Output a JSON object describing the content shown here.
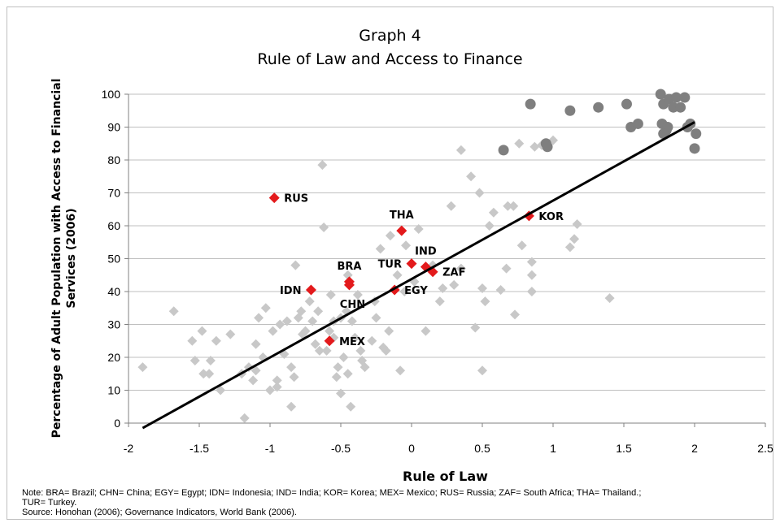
{
  "chart_data": {
    "type": "scatter",
    "title": "Graph 4",
    "subtitle": "Rule of Law and Access to Finance",
    "xlabel": "Rule of Law",
    "ylabel_lines": [
      "Percentage of Adult Population with Access to Financial",
      "Services (2006)"
    ],
    "xlim": [
      -2,
      2.5
    ],
    "ylim": [
      0,
      100
    ],
    "xticks": [
      -2,
      -1.5,
      -1,
      -0.5,
      0,
      0.5,
      1,
      1.5,
      2,
      2.5
    ],
    "xtick_labels": [
      "-2",
      "-1.5",
      "-1",
      "-0.5",
      "0",
      "0.5",
      "1",
      "1.5",
      "2",
      "2.5"
    ],
    "yticks": [
      0,
      10,
      20,
      30,
      40,
      50,
      60,
      70,
      80,
      90,
      100
    ],
    "ytick_labels": [
      "0",
      "10",
      "20",
      "30",
      "40",
      "50",
      "60",
      "70",
      "80",
      "90",
      "100"
    ],
    "grid": "horizontal",
    "legend": "none",
    "colors": {
      "others": "#c8c8c8",
      "highlighted": "#e31a1c",
      "high_income": "#7f7f7f",
      "trend": "#000000"
    },
    "trendline": {
      "x": [
        -1.9,
        2.0
      ],
      "y": [
        -1.5,
        91.5
      ]
    },
    "series": [
      {
        "marker": "diamond",
        "color": "#c8c8c8",
        "points": [
          [
            -1.9,
            17
          ],
          [
            -1.68,
            34
          ],
          [
            -1.55,
            25
          ],
          [
            -1.53,
            19
          ],
          [
            -1.48,
            28
          ],
          [
            -1.47,
            15
          ],
          [
            -1.43,
            15
          ],
          [
            -1.42,
            19
          ],
          [
            -1.38,
            25
          ],
          [
            -1.35,
            10
          ],
          [
            -1.28,
            27
          ],
          [
            -1.2,
            15
          ],
          [
            -1.18,
            1.5
          ],
          [
            -1.15,
            17
          ],
          [
            -1.12,
            13
          ],
          [
            -1.1,
            16
          ],
          [
            -1.1,
            24
          ],
          [
            -1.08,
            32
          ],
          [
            -1.05,
            20
          ],
          [
            -1.03,
            35
          ],
          [
            -1.0,
            10
          ],
          [
            -0.98,
            28
          ],
          [
            -0.95,
            13
          ],
          [
            -0.95,
            11
          ],
          [
            -0.93,
            30
          ],
          [
            -0.9,
            21
          ],
          [
            -0.88,
            31
          ],
          [
            -0.85,
            17
          ],
          [
            -0.85,
            5
          ],
          [
            -0.83,
            14
          ],
          [
            -0.82,
            48
          ],
          [
            -0.8,
            32
          ],
          [
            -0.78,
            34
          ],
          [
            -0.77,
            27
          ],
          [
            -0.75,
            28
          ],
          [
            -0.72,
            37
          ],
          [
            -0.7,
            31
          ],
          [
            -0.68,
            24
          ],
          [
            -0.66,
            34
          ],
          [
            -0.65,
            22
          ],
          [
            -0.63,
            78.5
          ],
          [
            -0.62,
            59.5
          ],
          [
            -0.6,
            22
          ],
          [
            -0.58,
            28
          ],
          [
            -0.57,
            39
          ],
          [
            -0.55,
            31
          ],
          [
            -0.55,
            26
          ],
          [
            -0.53,
            14
          ],
          [
            -0.52,
            17
          ],
          [
            -0.5,
            32
          ],
          [
            -0.5,
            9
          ],
          [
            -0.48,
            20
          ],
          [
            -0.46,
            34
          ],
          [
            -0.45,
            45
          ],
          [
            -0.45,
            15
          ],
          [
            -0.43,
            5
          ],
          [
            -0.42,
            31
          ],
          [
            -0.4,
            26
          ],
          [
            -0.38,
            39
          ],
          [
            -0.36,
            22
          ],
          [
            -0.35,
            19
          ],
          [
            -0.33,
            17
          ],
          [
            -0.28,
            25
          ],
          [
            -0.26,
            37
          ],
          [
            -0.25,
            32
          ],
          [
            -0.22,
            53
          ],
          [
            -0.2,
            23
          ],
          [
            -0.18,
            22
          ],
          [
            -0.16,
            28
          ],
          [
            -0.15,
            57
          ],
          [
            -0.1,
            45
          ],
          [
            -0.08,
            16
          ],
          [
            -0.05,
            40
          ],
          [
            -0.04,
            54
          ],
          [
            0.02,
            43
          ],
          [
            0.05,
            59
          ],
          [
            0.1,
            28
          ],
          [
            0.15,
            48
          ],
          [
            0.2,
            37
          ],
          [
            0.22,
            41
          ],
          [
            0.28,
            66
          ],
          [
            0.3,
            42
          ],
          [
            0.35,
            83
          ],
          [
            0.35,
            47
          ],
          [
            0.42,
            75
          ],
          [
            0.45,
            29
          ],
          [
            0.48,
            70
          ],
          [
            0.5,
            16
          ],
          [
            0.5,
            41
          ],
          [
            0.52,
            37
          ],
          [
            0.55,
            60
          ],
          [
            0.58,
            64
          ],
          [
            0.63,
            40.5
          ],
          [
            0.67,
            47
          ],
          [
            0.68,
            66
          ],
          [
            0.72,
            66
          ],
          [
            0.73,
            33
          ],
          [
            0.76,
            85
          ],
          [
            0.78,
            54
          ],
          [
            0.85,
            49
          ],
          [
            0.85,
            45
          ],
          [
            0.85,
            40
          ],
          [
            0.87,
            84
          ],
          [
            0.92,
            84.5
          ],
          [
            1.0,
            86
          ],
          [
            1.12,
            53.5
          ],
          [
            1.15,
            56
          ],
          [
            1.17,
            60.5
          ],
          [
            1.4,
            38
          ]
        ]
      },
      {
        "marker": "diamond",
        "color": "#e31a1c",
        "points": [
          [
            -0.97,
            68.5
          ],
          [
            -0.71,
            40.5
          ],
          [
            -0.58,
            25
          ],
          [
            -0.44,
            43
          ],
          [
            -0.44,
            42
          ],
          [
            -0.12,
            40.5
          ],
          [
            -0.07,
            58.5
          ],
          [
            0.0,
            48.5
          ],
          [
            0.1,
            47.5
          ],
          [
            0.15,
            46
          ],
          [
            0.83,
            63
          ]
        ]
      },
      {
        "marker": "circle",
        "color": "#7f7f7f",
        "points": [
          [
            0.65,
            83
          ],
          [
            0.84,
            97
          ],
          [
            0.95,
            85
          ],
          [
            0.96,
            84
          ],
          [
            1.12,
            95
          ],
          [
            1.32,
            96
          ],
          [
            1.52,
            97
          ],
          [
            1.55,
            90
          ],
          [
            1.6,
            91
          ],
          [
            1.76,
            100
          ],
          [
            1.77,
            91
          ],
          [
            1.78,
            97
          ],
          [
            1.8,
            89
          ],
          [
            1.81,
            90
          ],
          [
            1.82,
            98.5
          ],
          [
            1.85,
            96
          ],
          [
            1.87,
            99
          ],
          [
            1.9,
            96
          ],
          [
            1.93,
            99
          ],
          [
            1.95,
            90
          ],
          [
            1.97,
            91
          ],
          [
            2.0,
            83.5
          ],
          [
            2.01,
            88
          ],
          [
            1.78,
            88
          ]
        ]
      }
    ],
    "annotations": [
      {
        "text": "RUS",
        "x": -0.97,
        "y": 68.5,
        "anchor": "right"
      },
      {
        "text": "THA",
        "x": -0.07,
        "y": 58.5,
        "anchor": "above"
      },
      {
        "text": "KOR",
        "x": 0.83,
        "y": 63,
        "anchor": "right"
      },
      {
        "text": "IND",
        "x": 0.1,
        "y": 47.5,
        "anchor": "above"
      },
      {
        "text": "BRA",
        "x": -0.44,
        "y": 43,
        "anchor": "above"
      },
      {
        "text": "TUR",
        "x": 0.0,
        "y": 48.5,
        "anchor": "left"
      },
      {
        "text": "ZAF",
        "x": 0.15,
        "y": 46,
        "anchor": "right"
      },
      {
        "text": "IDN",
        "x": -0.71,
        "y": 40.5,
        "anchor": "left"
      },
      {
        "text": "EGY",
        "x": -0.12,
        "y": 40.5,
        "anchor": "right"
      },
      {
        "text": "CHN",
        "x": -0.44,
        "y": 42,
        "anchor": "below"
      },
      {
        "text": "MEX",
        "x": -0.58,
        "y": 25,
        "anchor": "right"
      }
    ]
  },
  "notes": {
    "line1": "Note: BRA= Brazil; CHN= China; EGY= Egypt; IDN= Indonesia; IND= India; KOR= Korea; MEX= Mexico;  RUS= Russia; ZAF= South Africa; THA= Thailand.;",
    "line2": "TUR= Turkey.",
    "line3": "Source: Honohan (2006); Governance Indicators, World Bank (2006)."
  }
}
